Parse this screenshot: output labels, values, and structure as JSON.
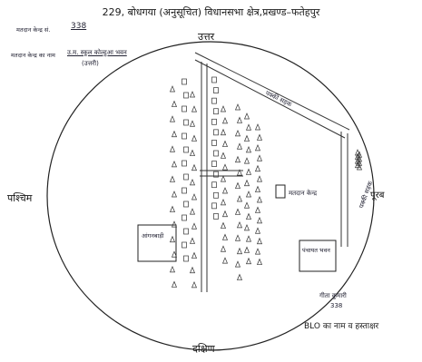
{
  "header": {
    "title": "229, बोधगया (अनुसूचित) विधानसभा क्षेत्र,प्रखण्ड–फतेहपुर"
  },
  "form": {
    "booth_no_label": "मतदान केन्द्र सं.",
    "booth_no_value": "338",
    "location_label": "मतदान केन्द्र का नाम",
    "location_value_line1": "उ.म. स्कूल कोल्हुआ भवन",
    "location_value_line2": "(उत्तरी)"
  },
  "directions": {
    "north": "उत्तर",
    "south": "दक्षिण",
    "east": "पूरब",
    "west": "पश्चिम"
  },
  "map": {
    "station_label": "मतदान केन्द्र",
    "bottom_left_label": "आंगनबाड़ी",
    "bottom_right_label": "पंचायत भवन",
    "right_road_label": "पक्की सड़क",
    "top_road_label": "पक्की सड़क",
    "house_count": 120
  },
  "signature": {
    "name": "गीता कुमारी",
    "number": "338",
    "blo_label": "BLO का नाम व हस्ताक्षर"
  },
  "colors": {
    "ink": "#222233",
    "paper": "#ffffff"
  }
}
